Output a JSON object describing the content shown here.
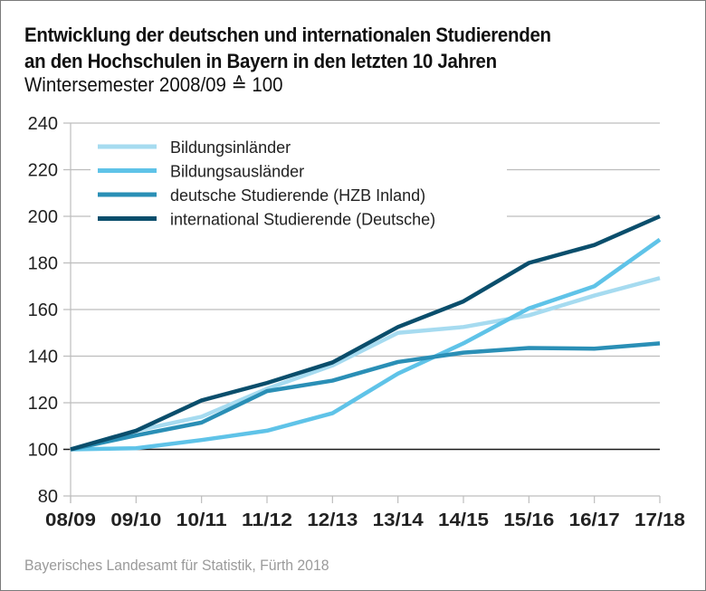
{
  "header": {
    "title_line1": "Entwicklung der deutschen und internationalen Studierenden",
    "title_line2": "an den Hochschulen in Bayern in den letzten 10 Jahren",
    "subtitle": "Wintersemester 2008/09 ≙ 100"
  },
  "footer": {
    "source": "Bayerisches Landesamt für Statistik, Fürth 2018"
  },
  "chart_data": {
    "type": "line",
    "title": "Entwicklung der deutschen und internationalen Studierenden an den Hochschulen in Bayern in den letzten 10 Jahren",
    "subtitle": "Wintersemester 2008/09 ≙ 100",
    "xlabel": "",
    "ylabel": "",
    "categories": [
      "08/09",
      "09/10",
      "10/11",
      "11/12",
      "12/13",
      "13/14",
      "14/15",
      "15/16",
      "16/17",
      "17/18"
    ],
    "ylim": [
      80,
      240
    ],
    "yticks": [
      80,
      100,
      120,
      140,
      160,
      180,
      200,
      220,
      240
    ],
    "grid": true,
    "baseline": 100,
    "legend_position": "top-left",
    "series": [
      {
        "name": "Bildungsinländer",
        "color": "#a6dbf0",
        "values": [
          100,
          108,
          114,
          126,
          136,
          150,
          152.5,
          157.5,
          166,
          173.5
        ]
      },
      {
        "name": "Bildungsausländer",
        "color": "#5fc3e8",
        "values": [
          100,
          100.5,
          104,
          108,
          115.5,
          132.5,
          145.5,
          160.5,
          170,
          190
        ]
      },
      {
        "name": "deutsche Studierende (HZB Inland)",
        "color": "#2a8fb6",
        "values": [
          100,
          106,
          111.5,
          125,
          129.5,
          137.5,
          141.5,
          143.5,
          143.2,
          145.5
        ]
      },
      {
        "name": "international Studierende (Deutsche)",
        "color": "#0a4e6c",
        "values": [
          100,
          108,
          121,
          128.5,
          137.3,
          152.5,
          163.5,
          180,
          187.7,
          200
        ]
      }
    ]
  }
}
